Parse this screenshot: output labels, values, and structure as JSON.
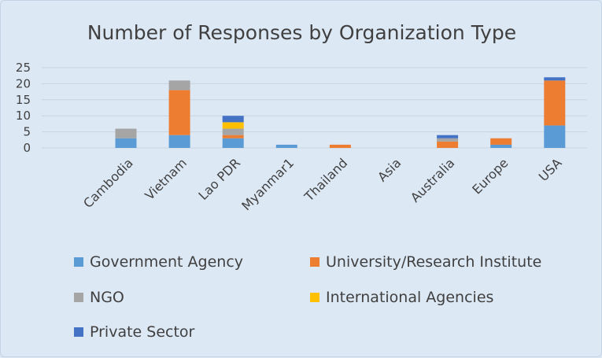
{
  "chart_data": {
    "type": "bar",
    "stacked": true,
    "title": "Number of Responses by Organization Type",
    "categories": [
      "Cambodia",
      "Vietnam",
      "Lao PDR",
      "Myanmar1",
      "Thailand",
      "Asia",
      "Australia",
      "Europe",
      "USA"
    ],
    "series": [
      {
        "name": "Government Agency",
        "color": "#5b9bd5",
        "values": [
          3,
          4,
          3,
          1,
          0,
          0,
          0,
          1,
          7
        ]
      },
      {
        "name": "University/Research Institute",
        "color": "#ed7d31",
        "values": [
          0,
          14,
          1,
          0,
          1,
          0,
          2,
          2,
          14
        ]
      },
      {
        "name": "NGO",
        "color": "#a5a5a5",
        "values": [
          3,
          3,
          2,
          0,
          0,
          0,
          1,
          0,
          0
        ]
      },
      {
        "name": "International Agencies",
        "color": "#ffc000",
        "values": [
          0,
          0,
          2,
          0,
          0,
          0,
          0,
          0,
          0
        ]
      },
      {
        "name": "Private Sector",
        "color": "#4472c4",
        "values": [
          0,
          0,
          2,
          0,
          0,
          0,
          1,
          0,
          1
        ]
      }
    ],
    "yticks": [
      0,
      5,
      10,
      15,
      20,
      25
    ],
    "ylim": [
      0,
      25
    ],
    "grid": true,
    "legend_position": "bottom"
  }
}
